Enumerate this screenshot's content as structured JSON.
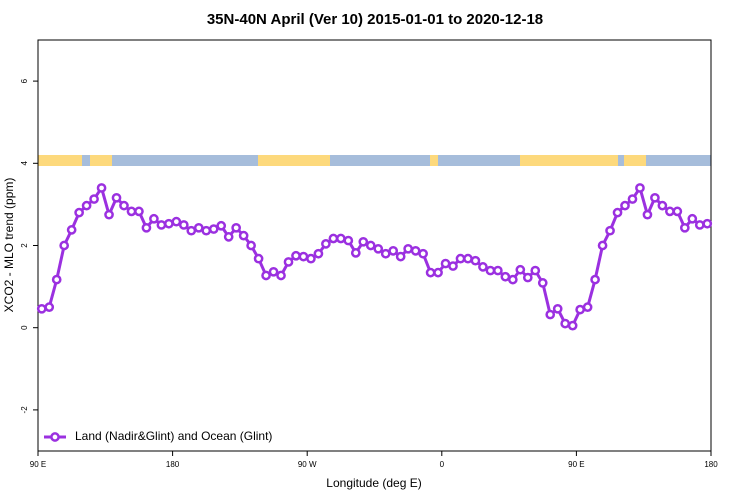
{
  "chart_data": {
    "type": "line",
    "title": "35N-40N April (Ver 10)   2015-01-01 to 2020-12-18",
    "x_label": "Longitude (deg E)",
    "y_label": "XCO2 - MLO trend (ppm)",
    "x": [
      92.5,
      97.5,
      102.5,
      107.5,
      112.5,
      117.5,
      122.5,
      127.5,
      132.5,
      137.5,
      142.5,
      147.5,
      152.5,
      157.5,
      162.5,
      167.5,
      172.5,
      177.5,
      182.5,
      187.5,
      192.5,
      197.5,
      202.5,
      207.5,
      212.5,
      217.5,
      222.5,
      227.5,
      232.5,
      237.5,
      242.5,
      247.5,
      252.5,
      257.5,
      262.5,
      267.5,
      272.5,
      277.5,
      282.5,
      287.5,
      292.5,
      297.5,
      302.5,
      307.5,
      312.5,
      317.5,
      322.5,
      327.5,
      332.5,
      337.5,
      342.5,
      347.5,
      352.5,
      357.5,
      362.5,
      367.5,
      372.5,
      377.5,
      382.5,
      387.5,
      392.5,
      397.5,
      402.5,
      407.5,
      412.5,
      417.5,
      422.5,
      427.5,
      432.5,
      437.5,
      442.5,
      447.5,
      452.5,
      457.5,
      462.5,
      467.5,
      472.5,
      477.5,
      482.5,
      487.5,
      492.5,
      497.5,
      502.5,
      507.5,
      512.5,
      517.5,
      522.5,
      527.5,
      532.5,
      537.5
    ],
    "series": [
      {
        "name": "Land (Nadir&Glint) and Ocean (Glint)",
        "color": "#9b30e0",
        "values": [
          0.46,
          0.5,
          1.17,
          2.0,
          2.38,
          2.8,
          2.97,
          3.13,
          3.4,
          2.75,
          3.16,
          2.97,
          2.83,
          2.83,
          2.43,
          2.65,
          2.5,
          2.53,
          2.58,
          2.5,
          2.36,
          2.43,
          2.36,
          2.4,
          2.48,
          2.21,
          2.43,
          2.24,
          2.0,
          1.68,
          1.27,
          1.36,
          1.27,
          1.6,
          1.75,
          1.73,
          1.68,
          1.8,
          2.04,
          2.17,
          2.17,
          2.12,
          1.82,
          2.09,
          2.0,
          1.92,
          1.8,
          1.87,
          1.73,
          1.92,
          1.87,
          1.8,
          1.34,
          1.34,
          1.56,
          1.5,
          1.68,
          1.68,
          1.63,
          1.48,
          1.39,
          1.39,
          1.24,
          1.17,
          1.41,
          1.22,
          1.39,
          1.09,
          0.32,
          0.46,
          0.1,
          0.05,
          0.44,
          0.5,
          1.17,
          2.0,
          2.36,
          2.8,
          2.97,
          3.13,
          3.4,
          2.75,
          3.16,
          2.97,
          2.83,
          2.83,
          2.43,
          2.65,
          2.5,
          2.53
        ]
      }
    ],
    "xlim": [
      90,
      540
    ],
    "xticks": [
      {
        "value": 90,
        "label": "90 E"
      },
      180,
      {
        "value": 270,
        "label": "90 W"
      },
      {
        "value": 360,
        "label": "0"
      },
      {
        "value": 450,
        "label": "90 E"
      },
      {
        "value": 540,
        "label": "180"
      }
    ],
    "ylim": [
      -3,
      7
    ],
    "yticks": [
      -2,
      0,
      2,
      4,
      6
    ],
    "legend": "bottomleft"
  }
}
